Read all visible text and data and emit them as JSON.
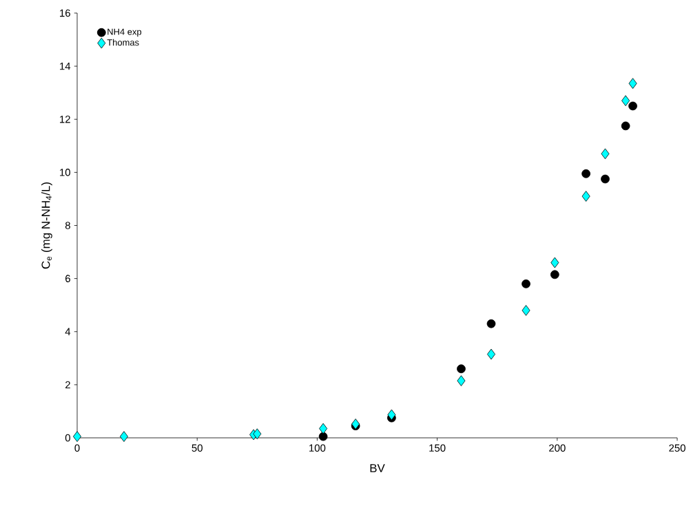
{
  "chart_data": {
    "type": "scatter",
    "xlabel": "BV",
    "ylabel": "C$_{e}$ (mg N-NH$_{4}$/L)",
    "xlim": [
      0,
      250
    ],
    "ylim": [
      0,
      16
    ],
    "xticks": [
      0,
      50,
      100,
      150,
      200,
      250
    ],
    "yticks": [
      0,
      2,
      4,
      6,
      8,
      10,
      12,
      14,
      16
    ],
    "grid": false,
    "legend": "top left",
    "series": [
      {
        "name": "NH4 exp",
        "color": "#000000",
        "marker": "circle",
        "x": [
          102.5,
          116,
          131,
          160,
          172.5,
          187,
          199,
          212,
          220,
          228.5,
          231.5
        ],
        "values": [
          0.05,
          0.45,
          0.75,
          2.6,
          4.3,
          5.8,
          6.15,
          9.95,
          9.75,
          11.75,
          12.5
        ]
      },
      {
        "name": "Thomas",
        "color": "#00ffff",
        "marker": "diamond",
        "x": [
          0,
          19.5,
          73.5,
          75,
          102.5,
          116,
          131,
          160,
          172.5,
          187,
          199,
          212,
          220,
          228.5,
          231.5
        ],
        "values": [
          0.05,
          0.05,
          0.12,
          0.15,
          0.35,
          0.52,
          0.87,
          2.15,
          3.15,
          4.8,
          6.6,
          9.1,
          10.7,
          12.7,
          13.35
        ]
      }
    ]
  }
}
